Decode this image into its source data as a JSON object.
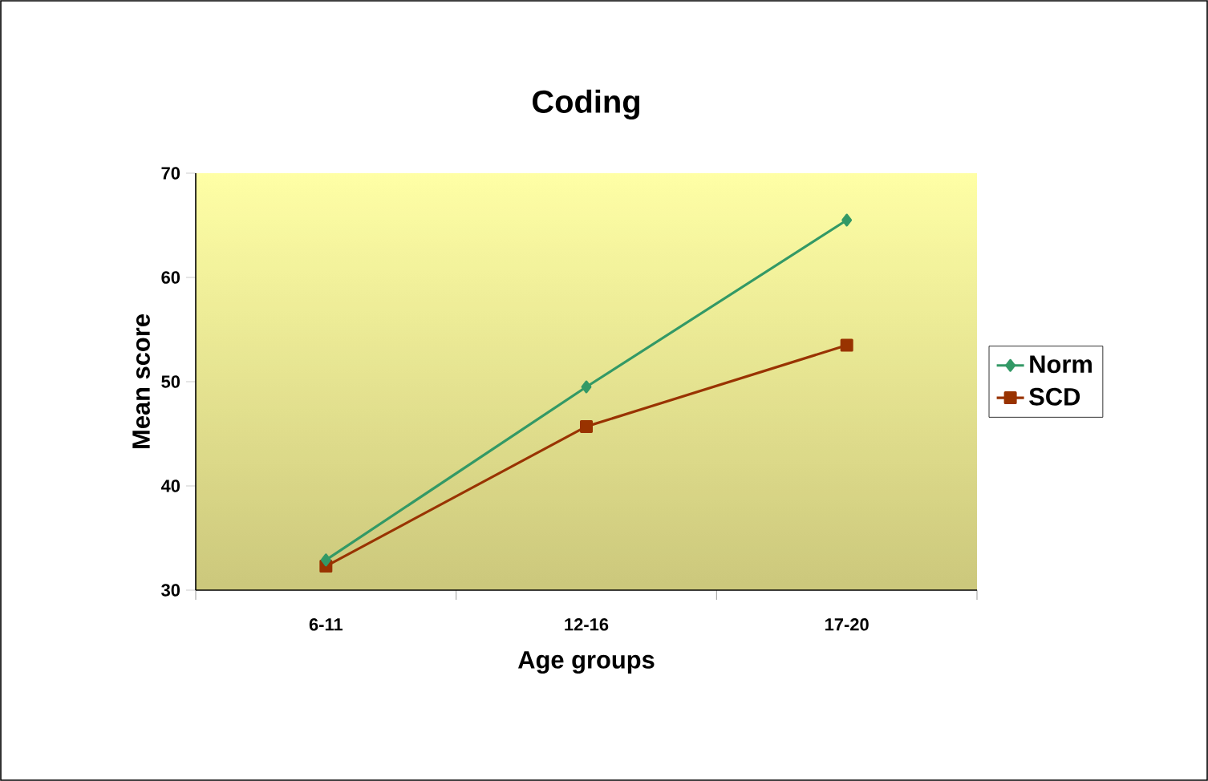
{
  "chart_data": {
    "type": "line",
    "title": "Coding",
    "xlabel": "Age groups",
    "ylabel": "Mean score",
    "categories": [
      "6-11",
      "12-16",
      "17-20"
    ],
    "series": [
      {
        "name": "Norm",
        "color": "#339966",
        "marker": "diamond",
        "values": [
          32.9,
          49.5,
          65.5
        ]
      },
      {
        "name": "SCD",
        "color": "#993300",
        "marker": "square",
        "values": [
          32.3,
          45.7,
          53.5
        ]
      }
    ],
    "ylim": [
      30,
      70
    ],
    "yticks": [
      30,
      40,
      50,
      60,
      70
    ],
    "grid": false,
    "legend": "right",
    "line_style": "solid"
  }
}
